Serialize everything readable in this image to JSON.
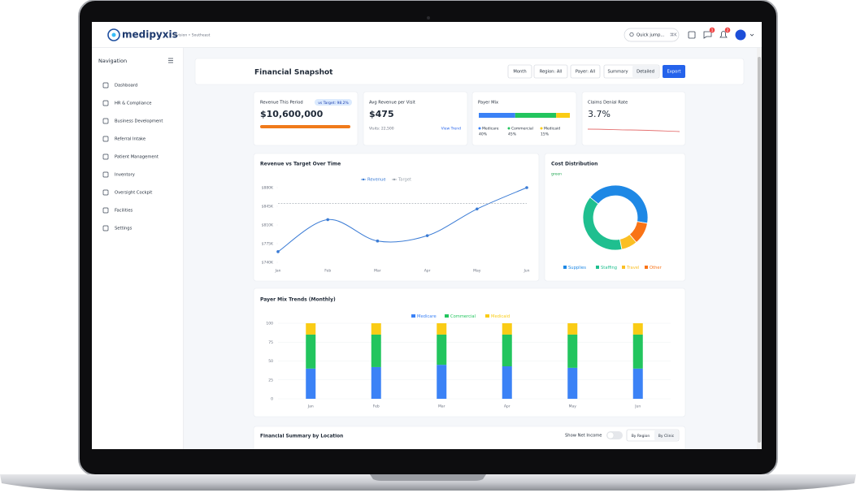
{
  "header": {
    "brand": "medipyxis",
    "context": "division • Southeast",
    "search": "Quick jump...",
    "shortcut": "⌘K",
    "messages_badge": "1",
    "alerts_badge": "2"
  },
  "navigation": {
    "title": "Navigation",
    "items": [
      "Dashboard",
      "HR & Compliance",
      "Business Development",
      "Referral Intake",
      "Patient Management",
      "Inventory",
      "Oversight Cockpit",
      "Facilities",
      "Settings"
    ]
  },
  "page": {
    "title": "Financial Snapshot",
    "filters": [
      "Month",
      "Region: All",
      "Payer: All"
    ],
    "views": [
      "Summary",
      "Detailed"
    ],
    "export": "Export"
  },
  "kpis": {
    "revenue": {
      "label": "Revenue This Period",
      "badge": "vs Target: 98.2%",
      "value": "$10,600,000"
    },
    "avg_revenue": {
      "label": "Avg Revenue per Visit",
      "value": "$475",
      "note": "Visits: 22,500",
      "link": "View Trend"
    },
    "denial": {
      "label": "Claims Denial Rate",
      "value": "3.7%"
    }
  },
  "chart_data": [
    {
      "type": "segmented-bar",
      "title": "Payer Mix",
      "categories": [
        "Medicare",
        "Commercial",
        "Medicaid"
      ],
      "values": [
        40,
        45,
        15
      ],
      "value_labels": [
        "40%",
        "45%",
        "15%"
      ],
      "colors": [
        "#3b82f6",
        "#22c55e",
        "#facc15"
      ]
    },
    {
      "type": "line",
      "title": "Revenue vs Target Over Time",
      "categories": [
        "Jan",
        "Feb",
        "Mar",
        "Apr",
        "May",
        "Jun"
      ],
      "series": [
        {
          "name": "Revenue",
          "color": "#3a7bd5",
          "values": [
            760000,
            820000,
            780000,
            790000,
            840000,
            880000
          ]
        },
        {
          "name": "Target",
          "color": "#9aa3ad",
          "dashed": true,
          "values": [
            850000,
            850000,
            850000,
            850000,
            850000,
            850000
          ]
        }
      ],
      "ylim": [
        740000,
        880000
      ],
      "yticks": [
        {
          "value": 740000,
          "label": "$740K"
        },
        {
          "value": 775000,
          "label": "$775K"
        },
        {
          "value": 810000,
          "label": "$810K"
        },
        {
          "value": 845000,
          "label": "$845K"
        },
        {
          "value": 880000,
          "label": "$880K"
        }
      ]
    },
    {
      "type": "pie",
      "title": "Cost Distribution",
      "subtitle": "green",
      "donut": true,
      "categories": [
        "Supplies",
        "Staffing",
        "Travel",
        "Other"
      ],
      "values": [
        42,
        39,
        8,
        11
      ],
      "colors": [
        "#1e88e5",
        "#1fbf8f",
        "#fbbf24",
        "#f97316"
      ]
    },
    {
      "type": "stacked-bar",
      "title": "Payer Mix Trends (Monthly)",
      "categories": [
        "Jan",
        "Feb",
        "Mar",
        "Apr",
        "May",
        "Jun"
      ],
      "series": [
        {
          "name": "Medicare",
          "color": "#3b82f6",
          "values": [
            40,
            42,
            45,
            43,
            41,
            40
          ]
        },
        {
          "name": "Commercial",
          "color": "#22c55e",
          "values": [
            45,
            43,
            40,
            42,
            44,
            45
          ]
        },
        {
          "name": "Medicaid",
          "color": "#facc15",
          "values": [
            15,
            15,
            15,
            15,
            15,
            15
          ]
        }
      ],
      "ylim": [
        0,
        100
      ],
      "yticks": [
        0,
        25,
        50,
        75,
        100
      ]
    }
  ],
  "summary": {
    "title": "Financial Summary by Location",
    "toggle_label": "Show Net Income",
    "views": [
      "By Region",
      "By Clinic"
    ]
  }
}
